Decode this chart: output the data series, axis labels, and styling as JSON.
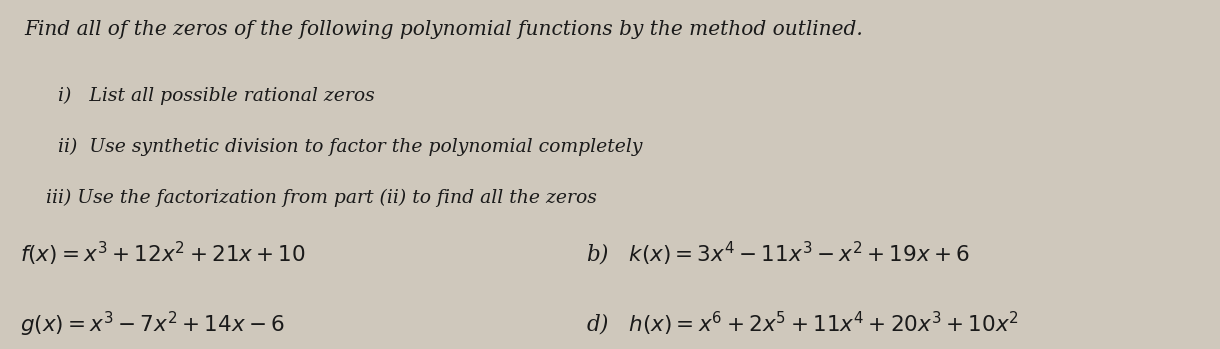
{
  "bg_color": "#cfc8bc",
  "text_color": "#1a1a1a",
  "title_line": "Find all of the zeros of the following polynomial functions by the method outlined.",
  "step_i": "i)   List all possible rational zeros",
  "step_ii": "ii)  Use synthetic division to factor the polynomial completely",
  "step_iii": "iii) Use the factorization from part (ii) to find all the zeros",
  "fa_label": "$f(x)=x^3+12x^2+21x+10$",
  "fb_label": "b)   $k(x)=3x^4-11x^3-x^2+19x+6$",
  "fc_label": "$g(x)=x^3-7x^2+14x-6$",
  "fd_label": "d)   $h(x)=x^6+2x^5+11x^4+20x^3+10x^2$",
  "font_size_title": 14.5,
  "font_size_steps": 13.5,
  "font_size_eq": 15.5
}
